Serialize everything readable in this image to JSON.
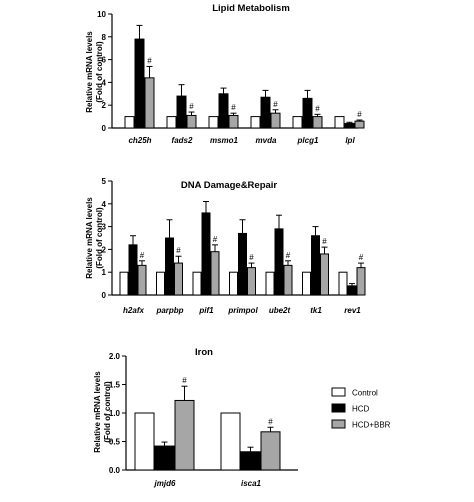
{
  "figure_colors": {
    "Control": "#ffffff",
    "HCD": "#000000",
    "HCD+BBR": "#a6a6a6"
  },
  "legend": [
    "Control",
    "HCD",
    "HCD+BBR"
  ],
  "chart_data": [
    {
      "type": "bar",
      "title": "Lipid Metabolism",
      "ylabel": "Relative mRNA levels\n(Fold of control)",
      "xlabel": "",
      "ylim": [
        0,
        10
      ],
      "yticks": [
        0,
        2,
        4,
        6,
        8,
        10
      ],
      "categories": [
        "ch25h",
        "fads2",
        "msmo1",
        "mvda",
        "plcg1",
        "lpl"
      ],
      "series": [
        {
          "name": "Control",
          "values": [
            1,
            1,
            1,
            1,
            1,
            1
          ],
          "errors": [
            0,
            0,
            0,
            0,
            0,
            0
          ]
        },
        {
          "name": "HCD",
          "values": [
            7.8,
            2.8,
            3.0,
            2.7,
            2.6,
            0.4
          ],
          "errors": [
            1.2,
            1.0,
            0.5,
            0.6,
            0.7,
            0.1
          ]
        },
        {
          "name": "HCD+BBR",
          "values": [
            4.4,
            1.1,
            1.1,
            1.3,
            1.0,
            0.6
          ],
          "errors": [
            1.0,
            0.3,
            0.2,
            0.3,
            0.2,
            0.1
          ]
        }
      ],
      "annotations": [
        "#",
        "#",
        "#",
        "#",
        "#",
        "#"
      ]
    },
    {
      "type": "bar",
      "title": "DNA Damage&Repair",
      "ylabel": "Relative mRNA levels\n(Fold of control)",
      "xlabel": "",
      "ylim": [
        0,
        5
      ],
      "yticks": [
        0,
        1,
        2,
        3,
        4,
        5
      ],
      "categories": [
        "h2afx",
        "parpbp",
        "pif1",
        "primpol",
        "ube2t",
        "tk1",
        "rev1"
      ],
      "series": [
        {
          "name": "Control",
          "values": [
            1,
            1,
            1,
            1,
            1,
            1,
            1
          ],
          "errors": [
            0,
            0,
            0,
            0,
            0,
            0,
            0
          ]
        },
        {
          "name": "HCD",
          "values": [
            2.2,
            2.5,
            3.6,
            2.7,
            2.9,
            2.6,
            0.4
          ],
          "errors": [
            0.4,
            0.8,
            0.5,
            0.6,
            0.6,
            0.4,
            0.1
          ]
        },
        {
          "name": "HCD+BBR",
          "values": [
            1.3,
            1.4,
            1.9,
            1.2,
            1.3,
            1.8,
            1.2
          ],
          "errors": [
            0.2,
            0.3,
            0.3,
            0.2,
            0.2,
            0.3,
            0.2
          ]
        }
      ],
      "annotations": [
        "#",
        "#",
        "#",
        "#",
        "#",
        "#",
        "#"
      ]
    },
    {
      "type": "bar",
      "title": "Iron",
      "ylabel": "Relative mRNA levels\n(Fold of control)",
      "xlabel": "",
      "ylim": [
        0,
        2.0
      ],
      "yticks": [
        0.0,
        0.5,
        1.0,
        1.5,
        2.0
      ],
      "categories": [
        "jmjd6",
        "isca1"
      ],
      "series": [
        {
          "name": "Control",
          "values": [
            1.0,
            1.0
          ],
          "errors": [
            0,
            0
          ]
        },
        {
          "name": "HCD",
          "values": [
            0.42,
            0.32
          ],
          "errors": [
            0.07,
            0.08
          ]
        },
        {
          "name": "HCD+BBR",
          "values": [
            1.22,
            0.67
          ],
          "errors": [
            0.25,
            0.08
          ]
        }
      ],
      "annotations": [
        "#",
        "#"
      ]
    }
  ]
}
